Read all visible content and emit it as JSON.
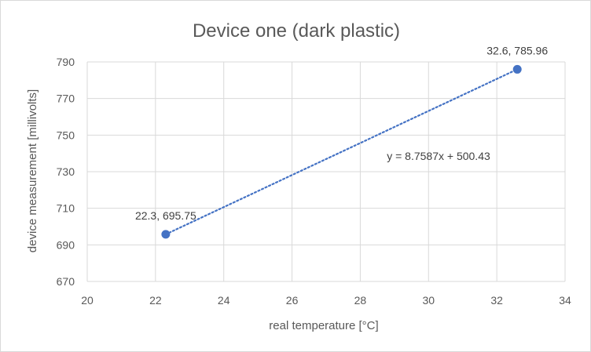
{
  "chart_data": {
    "type": "scatter",
    "title": "Device one (dark plastic)",
    "xlabel": "real temperature [°C]",
    "ylabel": "device measurement [millivolts]",
    "xlim": [
      20,
      34
    ],
    "ylim": [
      670,
      790
    ],
    "xticks": [
      "20",
      "22",
      "24",
      "26",
      "28",
      "30",
      "32",
      "34"
    ],
    "yticks": [
      "670",
      "690",
      "710",
      "730",
      "750",
      "770",
      "790"
    ],
    "grid": true,
    "series": [
      {
        "points": [
          {
            "x": 22.3,
            "y": 695.75,
            "label": "22.3, 695.75"
          },
          {
            "x": 32.6,
            "y": 785.96,
            "label": "32.6, 785.96"
          }
        ],
        "color": "#4472c4"
      }
    ],
    "trendline": {
      "type": "linear",
      "slope": 8.7587,
      "intercept": 500.43,
      "equation": "y = 8.7587x + 500.43",
      "style": "dotted",
      "color": "#4472c4"
    }
  }
}
